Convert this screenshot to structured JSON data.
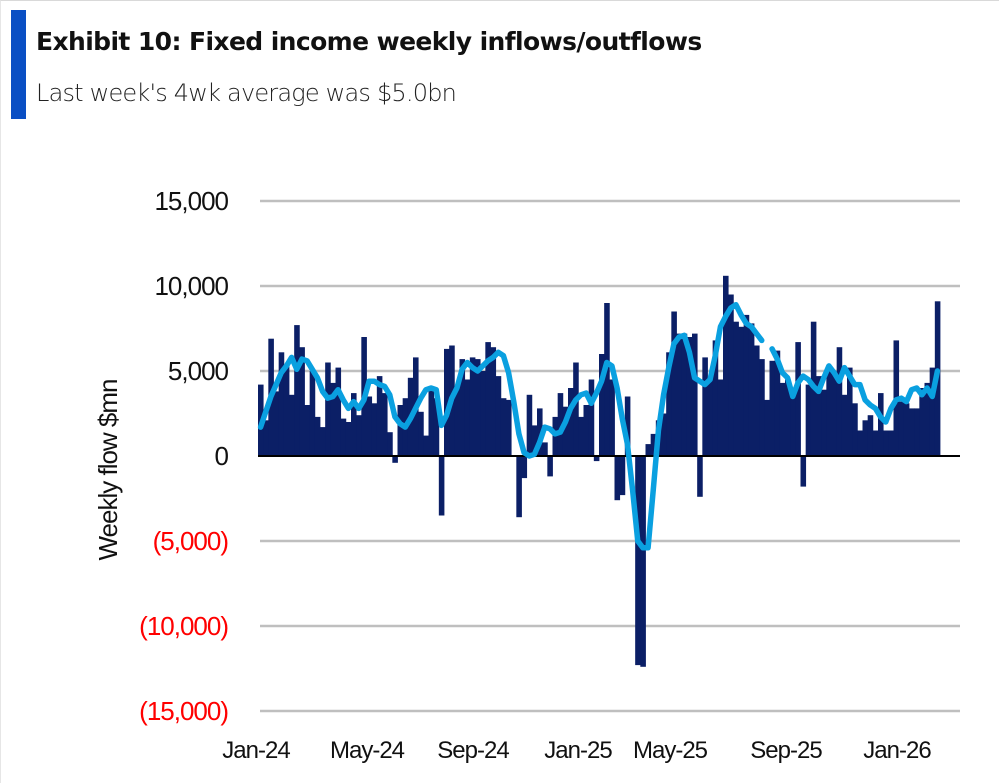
{
  "header": {
    "title": "Exhibit 10: Fixed income weekly inflows/outflows",
    "subtitle": "Last week's 4wk average was $5.0bn"
  },
  "colors": {
    "accent": "#0a4fc4",
    "bars": "#0b1f66",
    "line": "#0aa0e0",
    "negative_tick": "#ff0000",
    "grid": "#bfbfbf"
  },
  "chart_data": {
    "type": "bar",
    "title": "Exhibit 10: Fixed income weekly inflows/outflows",
    "subtitle": "Last week's 4wk average was $5.0bn",
    "xlabel": "",
    "ylabel": "Weekly flow $mn",
    "ylim": [
      -15000,
      15000
    ],
    "yticks": [
      15000,
      10000,
      5000,
      0,
      -5000,
      -10000,
      -15000
    ],
    "ytick_labels": [
      "15,000",
      "10,000",
      "5,000",
      "0",
      "(5,000)",
      "(10,000)",
      "(15,000)"
    ],
    "xtick_labels": [
      "Jan-24",
      "May-24",
      "Sep-24",
      "Jan-25",
      "May-25",
      "Sep-25",
      "Jan-26"
    ],
    "grid": true,
    "legend": "none",
    "series": [
      {
        "name": "Weekly flow",
        "kind": "bar",
        "values": [
          4200,
          2100,
          6900,
          3800,
          6100,
          5300,
          3600,
          7700,
          6400,
          3000,
          5000,
          2300,
          1700,
          5500,
          4300,
          5200,
          2200,
          2000,
          3700,
          2400,
          7000,
          3500,
          3100,
          4700,
          3700,
          1400,
          -400,
          3000,
          3400,
          4600,
          5800,
          2600,
          1200,
          4000,
          3400,
          -3500,
          6300,
          6500,
          4000,
          5700,
          4500,
          5800,
          5700,
          5000,
          6700,
          6400,
          4700,
          3400,
          3300,
          0,
          -3600,
          -1300,
          3600,
          1800,
          2800,
          800,
          -1200,
          2300,
          3700,
          2900,
          4000,
          5500,
          2300,
          3000,
          4500,
          -300,
          6000,
          9000,
          4500,
          -2600,
          -2300,
          3500,
          0,
          -12300,
          -12400,
          700,
          1300,
          2100,
          2500,
          6100,
          8500,
          7200,
          7200,
          7000,
          7200,
          -2400,
          5800,
          4600,
          6800,
          4500,
          10600,
          9500,
          7900,
          7600,
          8300,
          7800,
          6500,
          5700,
          3300,
          5600,
          6200,
          4300,
          4500,
          3800,
          6700,
          -1800,
          4200,
          7900,
          4700,
          3900,
          5200,
          4900,
          6400,
          3600,
          5200,
          3100,
          1500,
          2100,
          2400,
          1500,
          3700,
          1500,
          1500,
          6800,
          3200,
          3100,
          2800,
          2800,
          4000,
          4300,
          5200,
          9100
        ]
      },
      {
        "name": "4wk average",
        "kind": "line",
        "values": [
          1700,
          2600,
          3500,
          4200,
          4900,
          5300,
          5800,
          5100,
          5700,
          5600,
          5100,
          4600,
          3800,
          3400,
          3500,
          3900,
          3300,
          2800,
          3200,
          2800,
          3300,
          4400,
          4400,
          4200,
          4100,
          3600,
          2300,
          1900,
          1700,
          2200,
          2800,
          3400,
          3900,
          4000,
          3900,
          1800,
          2400,
          3400,
          4000,
          5100,
          5500,
          5200,
          5000,
          5300,
          5600,
          5800,
          6100,
          5900,
          4900,
          3200,
          1300,
          200,
          0,
          100,
          800,
          1700,
          1600,
          1300,
          1400,
          2000,
          2800,
          3300,
          3600,
          3700,
          3100,
          3700,
          4400,
          5500,
          5300,
          4000,
          2200,
          700,
          -2000,
          -5000,
          -5400,
          -5400,
          -2000,
          1500,
          3600,
          5200,
          6600,
          7000,
          7100,
          6100,
          4600,
          4400,
          4200,
          4500,
          5900,
          7600,
          8200,
          8700,
          8900,
          8300,
          7800,
          7600,
          7200,
          6800,
          null,
          6300,
          5700,
          4900,
          4600,
          3500,
          4300,
          4700,
          4500,
          4100,
          3800,
          4600,
          5300,
          4900,
          4400,
          5200,
          4700,
          4200,
          4200,
          3300,
          3000,
          2800,
          2300,
          2000,
          2800,
          3300,
          3400,
          3200,
          3900,
          4000,
          3600,
          4000,
          3500,
          5000
        ]
      }
    ]
  }
}
